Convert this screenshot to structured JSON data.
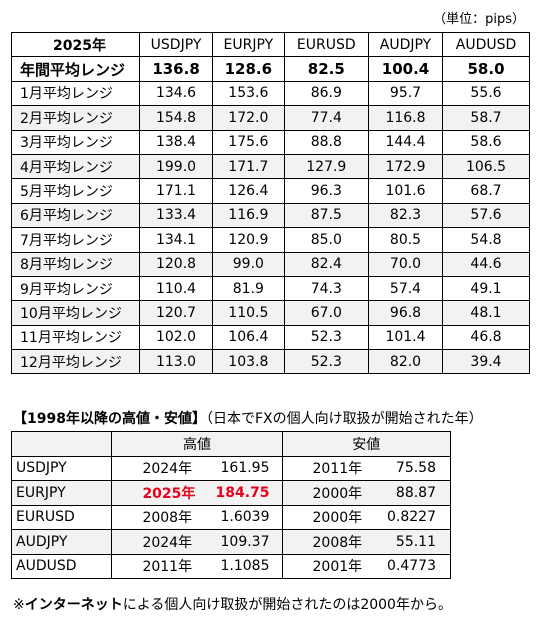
{
  "unit_label": "（単位：pips）",
  "range_table": {
    "year_header": "2025年",
    "currencies": [
      "USDJPY",
      "EURJPY",
      "EURUSD",
      "AUDJPY",
      "AUDUSD"
    ],
    "annual": {
      "label": "年間平均レンジ",
      "values": [
        "136.8",
        "128.6",
        "82.5",
        "100.4",
        "58.0"
      ]
    },
    "months": [
      {
        "label": "1月平均レンジ",
        "values": [
          "134.6",
          "153.6",
          "86.9",
          "95.7",
          "55.6"
        ]
      },
      {
        "label": "2月平均レンジ",
        "values": [
          "154.8",
          "172.0",
          "77.4",
          "116.8",
          "58.7"
        ]
      },
      {
        "label": "3月平均レンジ",
        "values": [
          "138.4",
          "175.6",
          "88.8",
          "144.4",
          "58.6"
        ]
      },
      {
        "label": "4月平均レンジ",
        "values": [
          "199.0",
          "171.7",
          "127.9",
          "172.9",
          "106.5"
        ]
      },
      {
        "label": "5月平均レンジ",
        "values": [
          "171.1",
          "126.4",
          "96.3",
          "101.6",
          "68.7"
        ]
      },
      {
        "label": "6月平均レンジ",
        "values": [
          "133.4",
          "116.9",
          "87.5",
          "82.3",
          "57.6"
        ]
      },
      {
        "label": "7月平均レンジ",
        "values": [
          "134.1",
          "120.9",
          "85.0",
          "80.5",
          "54.8"
        ]
      },
      {
        "label": "8月平均レンジ",
        "values": [
          "120.8",
          "99.0",
          "82.4",
          "70.0",
          "44.6"
        ]
      },
      {
        "label": "9月平均レンジ",
        "values": [
          "110.4",
          "81.9",
          "74.3",
          "57.4",
          "49.1"
        ]
      },
      {
        "label": "10月平均レンジ",
        "values": [
          "120.7",
          "110.5",
          "67.0",
          "96.8",
          "48.1"
        ]
      },
      {
        "label": "11月平均レンジ",
        "values": [
          "102.0",
          "106.4",
          "52.3",
          "101.4",
          "46.8"
        ]
      },
      {
        "label": "12月平均レンジ",
        "values": [
          "113.0",
          "103.8",
          "52.3",
          "82.0",
          "39.4"
        ]
      }
    ]
  },
  "highlow": {
    "title": "【1998年以降の高値・安値】",
    "subtitle": "（日本でFXの個人向け取扱が開始された年）",
    "high_header": "高値",
    "low_header": "安値",
    "highlight_color": "#e8001c",
    "rows": [
      {
        "pair": "USDJPY",
        "high_year": "2024年",
        "high": "161.95",
        "low_year": "2011年",
        "low": "75.58",
        "highlight": false
      },
      {
        "pair": "EURJPY",
        "high_year": "2025年",
        "high": "184.75",
        "low_year": "2000年",
        "low": "88.87",
        "highlight": true
      },
      {
        "pair": "EURUSD",
        "high_year": "2008年",
        "high": "1.6039",
        "low_year": "2000年",
        "low": "0.8227",
        "highlight": false
      },
      {
        "pair": "AUDJPY",
        "high_year": "2024年",
        "high": "109.37",
        "low_year": "2008年",
        "low": "55.11",
        "highlight": false
      },
      {
        "pair": "AUDUSD",
        "high_year": "2011年",
        "high": "1.1085",
        "low_year": "2001年",
        "low": "0.4773",
        "highlight": false
      }
    ]
  },
  "note": {
    "prefix": "※",
    "bold": "インターネット",
    "rest": "による個人向け取扱が開始されたのは2000年から。"
  }
}
